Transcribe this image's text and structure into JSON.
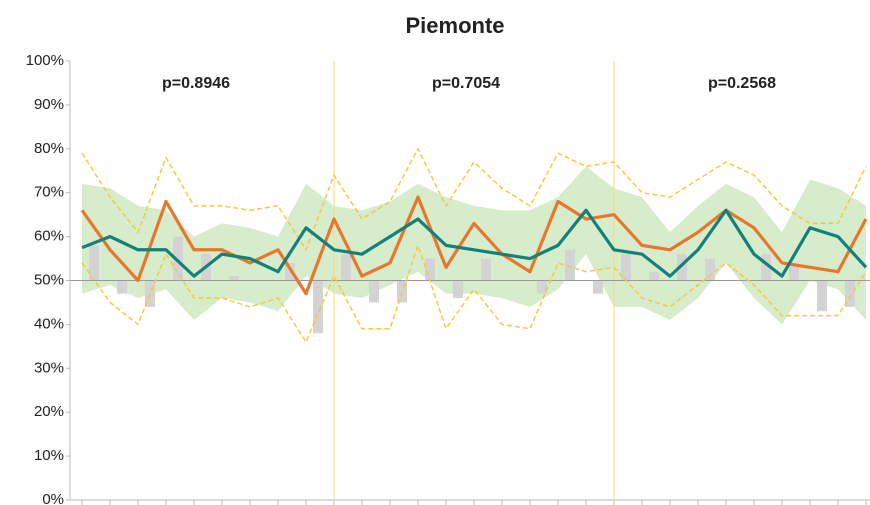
{
  "chart_data": {
    "type": "line",
    "title": "Piemonte",
    "annotations": [
      "p=0.8946",
      "p=0.7054",
      "p=0.2568"
    ],
    "dividers": [
      9,
      19
    ],
    "baseline": 50,
    "ylim": [
      0,
      100
    ],
    "yticks": [
      {
        "value": 0,
        "label": "0%"
      },
      {
        "value": 10,
        "label": "10%"
      },
      {
        "value": 20,
        "label": "20%"
      },
      {
        "value": 30,
        "label": "30%"
      },
      {
        "value": 40,
        "label": "40%"
      },
      {
        "value": 50,
        "label": "50%"
      },
      {
        "value": 60,
        "label": "60%"
      },
      {
        "value": 70,
        "label": "70%"
      },
      {
        "value": 80,
        "label": "80%"
      },
      {
        "value": 90,
        "label": "90%"
      },
      {
        "value": 100,
        "label": "100%"
      }
    ],
    "band": {
      "color": "#c9e6b9",
      "upper": [
        72,
        71,
        67,
        66,
        60,
        63,
        62,
        60,
        72,
        67,
        66,
        68,
        72,
        69,
        67,
        66,
        66,
        69,
        76,
        71,
        69,
        61,
        67,
        72,
        69,
        61,
        73,
        71,
        67
      ],
      "lower": [
        47,
        49,
        46,
        48,
        41,
        46,
        45,
        43,
        51,
        47,
        46,
        49,
        52,
        47,
        47,
        46,
        44,
        48,
        56,
        44,
        44,
        41,
        46,
        54,
        46,
        40,
        50,
        48,
        41
      ]
    },
    "bars": {
      "color": "#d3d3d3",
      "values": [
        58,
        47,
        44,
        60,
        56,
        51,
        50,
        54,
        38,
        56,
        45,
        45,
        55,
        46,
        55,
        50,
        47,
        57,
        47,
        56,
        52,
        56,
        55,
        50,
        56,
        54,
        43,
        44,
        57
      ]
    },
    "dashed": [
      {
        "color": "#f5c842",
        "values": [
          79,
          69,
          61,
          78,
          67,
          67,
          66,
          67,
          57,
          74,
          64,
          68,
          80,
          67,
          77,
          71,
          67,
          79,
          76,
          77,
          70,
          69,
          73,
          77,
          74,
          67,
          63,
          63,
          76
        ]
      },
      {
        "color": "#f5c842",
        "values": [
          54,
          45,
          40,
          56,
          46,
          46,
          44,
          46,
          36,
          51,
          39,
          39,
          58,
          39,
          48,
          40,
          39,
          54,
          52,
          53,
          46,
          44,
          49,
          54,
          49,
          42,
          42,
          42,
          52
        ]
      }
    ],
    "series": [
      {
        "color": "#e8772e",
        "values": [
          66,
          57,
          50,
          68,
          57,
          57,
          54,
          57,
          47,
          64,
          51,
          54,
          69,
          53,
          63,
          56,
          52,
          68,
          64,
          65,
          58,
          57,
          61,
          66,
          62,
          54,
          53,
          52,
          64
        ]
      },
      {
        "color": "#13807a",
        "values": [
          57.5,
          60,
          57,
          57,
          51,
          56,
          55,
          52,
          62,
          57,
          56,
          60,
          64,
          58,
          57,
          56,
          55,
          58,
          66,
          57,
          56,
          51,
          57,
          66,
          56,
          51,
          62,
          60,
          53
        ]
      }
    ]
  }
}
